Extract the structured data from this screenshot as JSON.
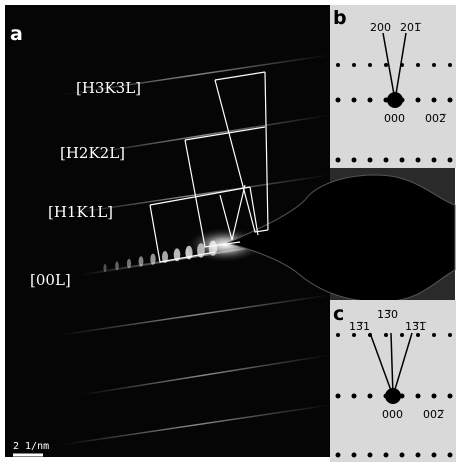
{
  "panels": {
    "a": {
      "label": "a",
      "annotations": [
        "[H3K3L]",
        "[H2K2L]",
        "[H1K1L]",
        "[00L]"
      ],
      "scale_bar": "2 1/nm"
    },
    "b": {
      "label": "b",
      "spots": [
        "200",
        "201̅",
        "000",
        "002̅"
      ]
    },
    "c": {
      "label": "c",
      "spots": [
        "13̅1",
        "13̅0",
        "13̅1̅",
        "000",
        "002̅"
      ]
    }
  }
}
